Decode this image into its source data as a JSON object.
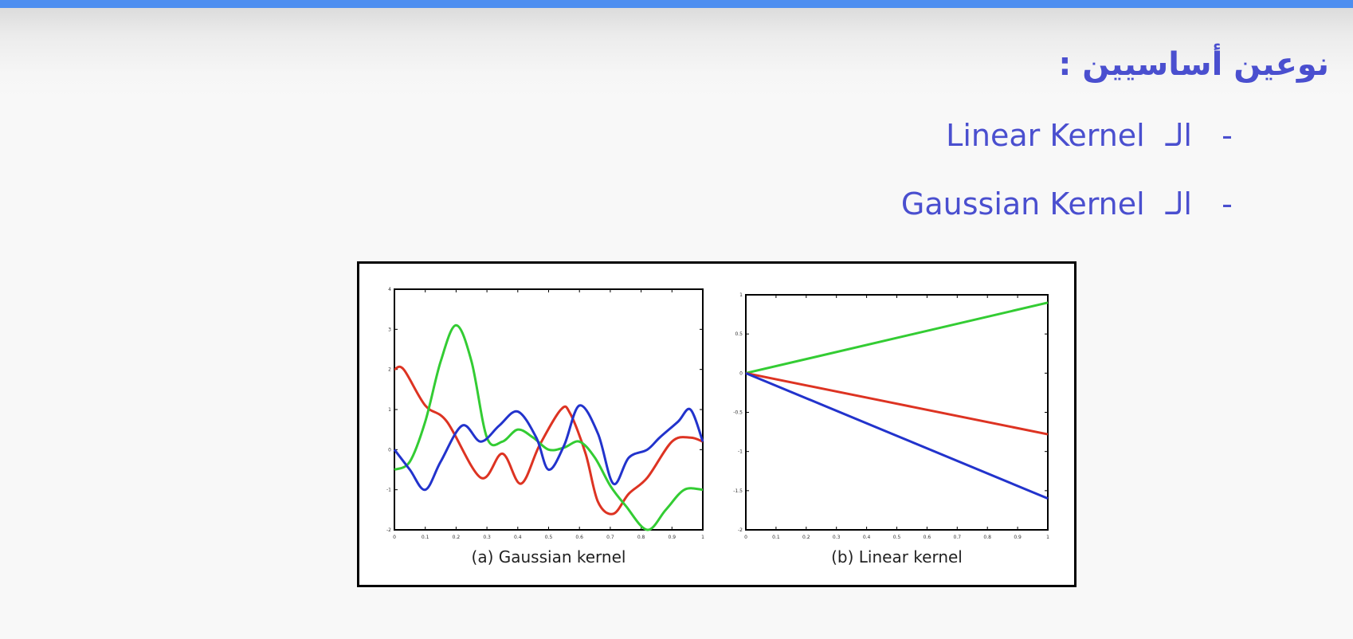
{
  "slide": {
    "title": "نوعين أساسيين :",
    "bullets": [
      {
        "dash": "-",
        "prefix": "الـ",
        "term": "Linear Kernel"
      },
      {
        "dash": "-",
        "prefix": "الـ",
        "term": "Gaussian Kernel"
      }
    ]
  },
  "colors": {
    "accent_bar": "#4d8ef0",
    "text": "#4a4fcf",
    "red": "#dd3322",
    "green": "#33cc33",
    "blue": "#2233cc"
  },
  "chart_data": [
    {
      "type": "line",
      "title": "(a) Gaussian kernel",
      "xlim": [
        0,
        1
      ],
      "ylim": [
        -2,
        4
      ],
      "x_ticks": [
        "0",
        "0.1",
        "0.2",
        "0.3",
        "0.4",
        "0.5",
        "0.6",
        "0.7",
        "0.8",
        "0.9",
        "1"
      ],
      "y_ticks": [
        "4",
        "3",
        "2",
        "1",
        "0",
        "-1",
        "-2"
      ],
      "series": [
        {
          "color": "red",
          "x": [
            0,
            0.03,
            0.1,
            0.17,
            0.28,
            0.35,
            0.41,
            0.47,
            0.54,
            0.57,
            0.62,
            0.66,
            0.71,
            0.76,
            0.82,
            0.9,
            0.96,
            1
          ],
          "y": [
            2,
            2,
            1.1,
            0.7,
            -0.7,
            -0.1,
            -0.85,
            0.1,
            1,
            0.9,
            -0.1,
            -1.3,
            -1.6,
            -1.1,
            -0.7,
            0.2,
            0.3,
            0.2
          ]
        },
        {
          "color": "green",
          "x": [
            0,
            0.05,
            0.1,
            0.15,
            0.2,
            0.25,
            0.3,
            0.35,
            0.4,
            0.45,
            0.5,
            0.55,
            0.6,
            0.65,
            0.7,
            0.75,
            0.82,
            0.88,
            0.94,
            1
          ],
          "y": [
            -0.5,
            -0.3,
            0.7,
            2.2,
            3.1,
            2.2,
            0.3,
            0.2,
            0.5,
            0.3,
            0,
            0.05,
            0.2,
            -0.2,
            -0.9,
            -1.4,
            -2,
            -1.5,
            -1,
            -1
          ]
        },
        {
          "color": "blue",
          "x": [
            0,
            0.05,
            0.1,
            0.15,
            0.22,
            0.28,
            0.34,
            0.4,
            0.46,
            0.5,
            0.55,
            0.6,
            0.66,
            0.71,
            0.76,
            0.82,
            0.86,
            0.92,
            0.96,
            1
          ],
          "y": [
            0,
            -0.5,
            -1,
            -0.3,
            0.6,
            0.2,
            0.6,
            0.95,
            0.3,
            -0.5,
            0.1,
            1.1,
            0.4,
            -0.85,
            -0.2,
            0,
            0.3,
            0.7,
            1,
            0.2
          ]
        }
      ]
    },
    {
      "type": "line",
      "title": "(b) Linear kernel",
      "xlim": [
        0,
        1
      ],
      "ylim": [
        -2,
        1
      ],
      "x_ticks": [
        "0",
        "0.1",
        "0.2",
        "0.3",
        "0.4",
        "0.5",
        "0.6",
        "0.7",
        "0.8",
        "0.9",
        "1"
      ],
      "y_ticks": [
        "1",
        "0.5",
        "0",
        "-0.5",
        "-1",
        "-1.5",
        "-2"
      ],
      "series": [
        {
          "color": "green",
          "x": [
            0,
            1
          ],
          "y": [
            0,
            0.9
          ]
        },
        {
          "color": "red",
          "x": [
            0,
            1
          ],
          "y": [
            0,
            -0.78
          ]
        },
        {
          "color": "blue",
          "x": [
            0,
            1
          ],
          "y": [
            0,
            -1.6
          ]
        }
      ]
    }
  ]
}
